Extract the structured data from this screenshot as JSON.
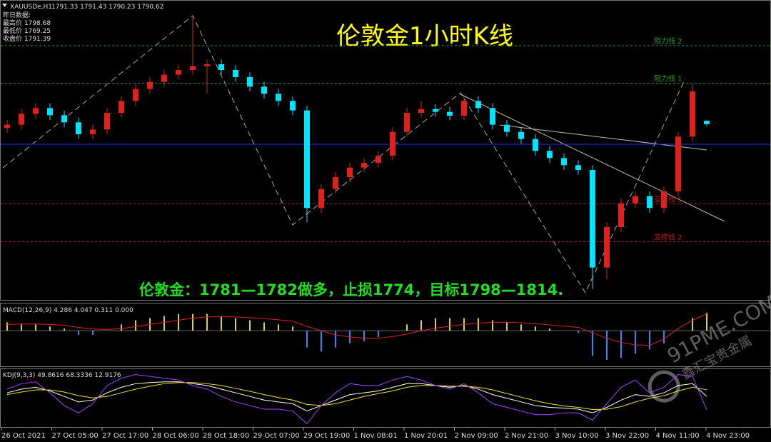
{
  "header": {
    "symbol": "XAUUSDe,H1",
    "ohlc": "1791.33 1791.43 1790.23 1790.62",
    "info": [
      "昨日数据:",
      "最高价 1798.68",
      "最低价 1769.25",
      "收盘价 1791.39"
    ]
  },
  "watermark": {
    "brand": "91PME.COM",
    "name": "鑫汇宝贵金属"
  },
  "x_labels": [
    "26 Oct 2021",
    "27 Oct 05:00",
    "27 Oct 17:00",
    "28 Oct 06:00",
    "28 Oct 18:00",
    "29 Oct 07:00",
    "29 Oct 19:00",
    "1 Nov 08:01",
    "1 Nov 20:01",
    "2 Nov 09:00",
    "2 Nov 21:00",
    "3 Nov 10:00",
    "3 Nov 22:00",
    "4 Nov 11:00",
    "4 Nov 23:00"
  ],
  "chart_data": [
    {
      "type": "candlestick",
      "title": "伦敦金1小时K线",
      "annotation": "伦敦金：1781—1782做多，止损1774，目标1798—1814.",
      "ylim": [
        1754,
        1814
      ],
      "bull_color": "#e0201c",
      "bear_color": "#00e5ff",
      "price_line": 1786.4,
      "levels": [
        {
          "label": "阻力线 2",
          "value": 1807.1,
          "color": "#1fa01f"
        },
        {
          "label": "阻力线 1",
          "value": 1799.2,
          "color": "#1fa01f"
        },
        {
          "label": "支撑线 1",
          "value": 1773.9,
          "color": "#c01818"
        },
        {
          "label": "支撑线 2",
          "value": 1765.9,
          "color": "#c01818"
        }
      ],
      "open": [
        1789.8,
        1790.5,
        1792.8,
        1794.0,
        1792.5,
        1791.0,
        1788.5,
        1789.5,
        1793.0,
        1795.5,
        1798.0,
        1799.5,
        1801.0,
        1802.0,
        1802.8,
        1803.2,
        1802.0,
        1800.5,
        1798.5,
        1797.0,
        1795.5,
        1793.5,
        1773.0,
        1777.0,
        1779.5,
        1781.5,
        1782.5,
        1784.0,
        1789.0,
        1793.0,
        1793.8,
        1793.2,
        1792.4,
        1795.5,
        1794.0,
        1790.5,
        1789.0,
        1787.5,
        1785.0,
        1783.5,
        1782.0,
        1781.0,
        1760.5,
        1769.0,
        1774.0,
        1775.5,
        1773.0,
        1776.5,
        1788.0,
        1791.33
      ],
      "high": [
        1791.5,
        1793.8,
        1795.0,
        1795.0,
        1793.5,
        1792.0,
        1790.5,
        1794.0,
        1796.5,
        1799.0,
        1800.5,
        1802.0,
        1803.0,
        1813.0,
        1804.2,
        1804.2,
        1803.0,
        1801.5,
        1799.5,
        1798.0,
        1796.5,
        1794.5,
        1778.0,
        1780.5,
        1782.5,
        1783.5,
        1785.0,
        1790.0,
        1794.0,
        1795.5,
        1794.8,
        1794.2,
        1796.5,
        1796.5,
        1795.0,
        1791.5,
        1790.0,
        1788.5,
        1786.0,
        1784.5,
        1783.0,
        1782.0,
        1770.0,
        1775.0,
        1776.5,
        1776.5,
        1777.5,
        1789.0,
        1799.0,
        1791.43
      ],
      "low": [
        1788.8,
        1789.5,
        1791.8,
        1791.5,
        1790.0,
        1787.5,
        1787.5,
        1788.5,
        1792.0,
        1794.5,
        1797.0,
        1798.5,
        1800.0,
        1801.0,
        1797.0,
        1801.0,
        1799.5,
        1797.5,
        1796.0,
        1794.5,
        1792.5,
        1770.0,
        1772.0,
        1776.0,
        1778.5,
        1780.5,
        1781.5,
        1783.0,
        1788.0,
        1792.0,
        1792.2,
        1791.4,
        1791.4,
        1793.0,
        1789.5,
        1788.0,
        1786.5,
        1784.0,
        1782.5,
        1781.0,
        1780.0,
        1756.0,
        1758.0,
        1768.0,
        1773.0,
        1772.0,
        1772.0,
        1775.5,
        1787.0,
        1790.23
      ],
      "close": [
        1790.5,
        1792.8,
        1794.0,
        1792.5,
        1791.0,
        1788.5,
        1789.5,
        1793.0,
        1795.5,
        1798.0,
        1799.5,
        1801.0,
        1802.0,
        1802.8,
        1803.2,
        1802.0,
        1800.5,
        1798.5,
        1797.0,
        1795.5,
        1793.5,
        1773.0,
        1777.0,
        1779.5,
        1781.5,
        1782.5,
        1784.0,
        1789.0,
        1793.0,
        1793.8,
        1793.2,
        1792.4,
        1795.5,
        1794.0,
        1790.5,
        1789.0,
        1787.5,
        1785.0,
        1783.5,
        1782.0,
        1781.0,
        1760.5,
        1769.0,
        1774.0,
        1775.5,
        1773.0,
        1776.5,
        1788.0,
        1797.5,
        1790.62
      ]
    },
    {
      "type": "macd",
      "label": "MACD(12,26,9) 4.286 4.047 0.311 0.000",
      "ylim": [
        -8,
        6
      ],
      "series": [
        {
          "name": "MACD",
          "color": "#e8d020",
          "negative_color": "#1e90ff",
          "values": [
            2,
            1.5,
            1.5,
            1,
            0.5,
            -1,
            -1,
            0,
            1.5,
            2.5,
            3,
            3.5,
            4,
            4,
            4,
            3.5,
            3,
            2.5,
            2,
            1.5,
            1,
            -4,
            -5,
            -4,
            -3,
            -2.5,
            -1.5,
            0,
            1.5,
            2.5,
            3,
            3,
            3,
            3,
            2.5,
            2,
            1.5,
            1,
            0.5,
            0,
            -0.5,
            -6,
            -7,
            -6.5,
            -5.5,
            -4.5,
            -3,
            0,
            3,
            4.286
          ]
        },
        {
          "name": "Signal",
          "color": "#e02020",
          "values": [
            1.5,
            1.6,
            1.6,
            1.5,
            1.3,
            0.8,
            0.4,
            0.3,
            0.5,
            1,
            1.5,
            2,
            2.5,
            3,
            3.3,
            3.4,
            3.3,
            3.1,
            2.9,
            2.6,
            2.3,
            1.0,
            0,
            -1,
            -1.5,
            -1.8,
            -1.8,
            -1.4,
            -0.8,
            0,
            0.6,
            1.1,
            1.5,
            1.8,
            2,
            2,
            1.9,
            1.7,
            1.4,
            1.1,
            0.8,
            -0.5,
            -1.8,
            -2.8,
            -3.4,
            -3.5,
            -2.0,
            0.5,
            2.5,
            4.047
          ]
        }
      ]
    },
    {
      "type": "line",
      "label": "KDJ(9,3,3) 49.8616 68.3336 12.9176",
      "ylim": [
        -30,
        115
      ],
      "series": [
        {
          "name": "K",
          "color": "#ffffff",
          "values": [
            60,
            70,
            75,
            65,
            50,
            35,
            40,
            60,
            75,
            85,
            88,
            90,
            90,
            85,
            80,
            70,
            60,
            50,
            40,
            35,
            30,
            10,
            25,
            40,
            55,
            60,
            65,
            75,
            85,
            85,
            80,
            75,
            80,
            70,
            55,
            45,
            35,
            25,
            20,
            18,
            15,
            5,
            20,
            40,
            55,
            50,
            60,
            80,
            85,
            49.8616
          ]
        },
        {
          "name": "D",
          "color": "#f0e020",
          "values": [
            55,
            62,
            68,
            68,
            62,
            52,
            46,
            50,
            60,
            70,
            78,
            85,
            88,
            88,
            85,
            80,
            72,
            64,
            55,
            47,
            40,
            28,
            25,
            30,
            40,
            50,
            58,
            65,
            75,
            80,
            80,
            78,
            78,
            75,
            68,
            58,
            48,
            38,
            30,
            24,
            20,
            14,
            15,
            22,
            35,
            45,
            52,
            65,
            75,
            68.3336
          ]
        },
        {
          "name": "J",
          "color": "#a040ff",
          "values": [
            70,
            85,
            90,
            60,
            25,
            5,
            30,
            80,
            100,
            110,
            105,
            100,
            95,
            80,
            70,
            50,
            35,
            25,
            15,
            15,
            10,
            -25,
            25,
            60,
            85,
            80,
            80,
            95,
            105,
            95,
            80,
            70,
            85,
            60,
            30,
            20,
            10,
            0,
            0,
            5,
            5,
            -15,
            30,
            75,
            95,
            60,
            75,
            110,
            105,
            12.9176
          ]
        }
      ]
    }
  ]
}
